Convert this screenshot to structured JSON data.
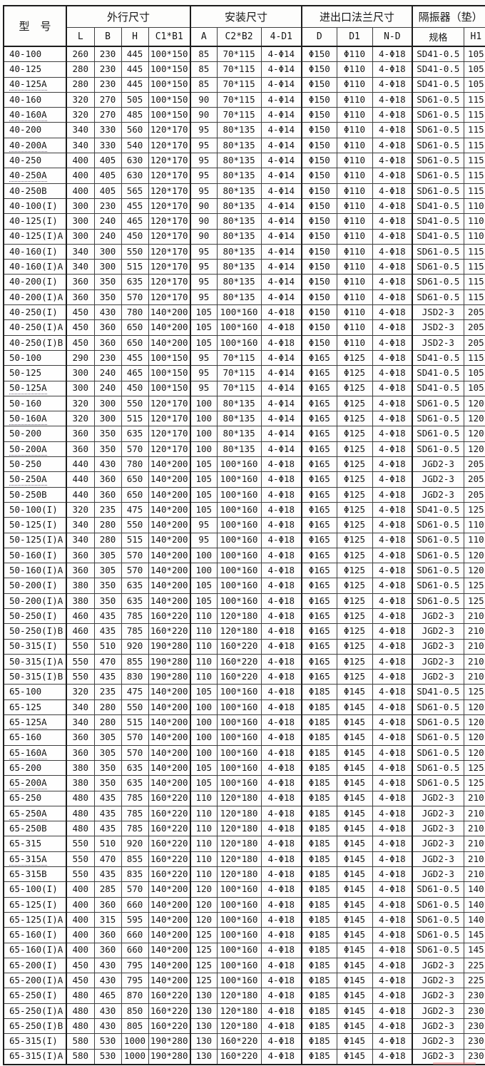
{
  "table": {
    "header": {
      "model": "型　号",
      "groups": [
        {
          "label": "外行尺寸",
          "cols": [
            "L",
            "B",
            "H",
            "C1*B1"
          ]
        },
        {
          "label": "安装尺寸",
          "cols": [
            "A",
            "C2*B2",
            "4-D1"
          ]
        },
        {
          "label": "进出口法兰尺寸",
          "cols": [
            "D",
            "D1",
            "N-D"
          ]
        },
        {
          "label": "隔振器（垫）",
          "cols": [
            "规格",
            "H1"
          ]
        }
      ]
    },
    "underlined_models": [
      "40-125A",
      "40-160A",
      "40-200A",
      "40-250A",
      "50-125A",
      "50-160A",
      "50-200A",
      "50-250A",
      "65-125A",
      "65-160A",
      "65-200A",
      "65-250A",
      "65-315A"
    ],
    "rows": [
      [
        "40-100",
        "260",
        "230",
        "445",
        "100*150",
        "85",
        "70*115",
        "4-Φ14",
        "Φ150",
        "Φ110",
        "4-Φ18",
        "SD41-0.5",
        "105"
      ],
      [
        "40-125",
        "280",
        "230",
        "445",
        "100*150",
        "85",
        "70*115",
        "4-Φ14",
        "Φ150",
        "Φ110",
        "4-Φ18",
        "SD41-0.5",
        "105"
      ],
      [
        "40-125A",
        "280",
        "230",
        "445",
        "100*150",
        "85",
        "70*115",
        "4-Φ14",
        "Φ150",
        "Φ110",
        "4-Φ18",
        "SD41-0.5",
        "105"
      ],
      [
        "40-160",
        "320",
        "270",
        "505",
        "100*150",
        "90",
        "70*115",
        "4-Φ14",
        "Φ150",
        "Φ110",
        "4-Φ18",
        "SD61-0.5",
        "115"
      ],
      [
        "40-160A",
        "320",
        "270",
        "485",
        "100*150",
        "90",
        "70*115",
        "4-Φ14",
        "Φ150",
        "Φ110",
        "4-Φ18",
        "SD61-0.5",
        "115"
      ],
      [
        "40-200",
        "340",
        "330",
        "560",
        "120*170",
        "95",
        "80*135",
        "4-Φ14",
        "Φ150",
        "Φ110",
        "4-Φ18",
        "SD61-0.5",
        "115"
      ],
      [
        "40-200A",
        "340",
        "330",
        "540",
        "120*170",
        "95",
        "80*135",
        "4-Φ14",
        "Φ150",
        "Φ110",
        "4-Φ18",
        "SD61-0.5",
        "115"
      ],
      [
        "40-250",
        "400",
        "405",
        "630",
        "120*170",
        "95",
        "80*135",
        "4-Φ14",
        "Φ150",
        "Φ110",
        "4-Φ18",
        "SD61-0.5",
        "115"
      ],
      [
        "40-250A",
        "400",
        "405",
        "630",
        "120*170",
        "95",
        "80*135",
        "4-Φ14",
        "Φ150",
        "Φ110",
        "4-Φ18",
        "SD61-0.5",
        "115"
      ],
      [
        "40-250B",
        "400",
        "405",
        "565",
        "120*170",
        "95",
        "80*135",
        "4-Φ14",
        "Φ150",
        "Φ110",
        "4-Φ18",
        "SD61-0.5",
        "115"
      ],
      [
        "40-100(I)",
        "300",
        "230",
        "455",
        "120*170",
        "90",
        "80*135",
        "4-Φ14",
        "Φ150",
        "Φ110",
        "4-Φ18",
        "SD41-0.5",
        "110"
      ],
      [
        "40-125(I)",
        "300",
        "240",
        "465",
        "120*170",
        "90",
        "80*135",
        "4-Φ14",
        "Φ150",
        "Φ110",
        "4-Φ18",
        "SD41-0.5",
        "110"
      ],
      [
        "40-125(I)A",
        "300",
        "240",
        "450",
        "120*170",
        "90",
        "80*135",
        "4-Φ14",
        "Φ150",
        "Φ110",
        "4-Φ18",
        "SD41-0.5",
        "110"
      ],
      [
        "40-160(I)",
        "340",
        "300",
        "550",
        "120*170",
        "95",
        "80*135",
        "4-Φ14",
        "Φ150",
        "Φ110",
        "4-Φ18",
        "SD61-0.5",
        "115"
      ],
      [
        "40-160(I)A",
        "340",
        "300",
        "515",
        "120*170",
        "95",
        "80*135",
        "4-Φ14",
        "Φ150",
        "Φ110",
        "4-Φ18",
        "SD61-0.5",
        "115"
      ],
      [
        "40-200(I)",
        "360",
        "350",
        "635",
        "120*170",
        "95",
        "80*135",
        "4-Φ14",
        "Φ150",
        "Φ110",
        "4-Φ18",
        "SD61-0.5",
        "115"
      ],
      [
        "40-200(I)A",
        "360",
        "350",
        "570",
        "120*170",
        "95",
        "80*135",
        "4-Φ14",
        "Φ150",
        "Φ110",
        "4-Φ18",
        "SD61-0.5",
        "115"
      ],
      [
        "40-250(I)",
        "450",
        "430",
        "780",
        "140*200",
        "105",
        "100*160",
        "4-Φ18",
        "Φ150",
        "Φ110",
        "4-Φ18",
        "JSD2-3",
        "205"
      ],
      [
        "40-250(I)A",
        "450",
        "360",
        "650",
        "140*200",
        "105",
        "100*160",
        "4-Φ18",
        "Φ150",
        "Φ110",
        "4-Φ18",
        "JSD2-3",
        "205"
      ],
      [
        "40-250(I)B",
        "450",
        "360",
        "650",
        "140*200",
        "105",
        "100*160",
        "4-Φ18",
        "Φ150",
        "Φ110",
        "4-Φ18",
        "JSD2-3",
        "205"
      ],
      [
        "50-100",
        "290",
        "230",
        "455",
        "100*150",
        "95",
        "70*115",
        "4-Φ14",
        "Φ165",
        "Φ125",
        "4-Φ18",
        "SD41-0.5",
        "115"
      ],
      [
        "50-125",
        "300",
        "240",
        "465",
        "100*150",
        "95",
        "70*115",
        "4-Φ14",
        "Φ165",
        "Φ125",
        "4-Φ18",
        "SD41-0.5",
        "105"
      ],
      [
        "50-125A",
        "300",
        "240",
        "450",
        "100*150",
        "95",
        "70*115",
        "4-Φ14",
        "Φ165",
        "Φ125",
        "4-Φ18",
        "SD41-0.5",
        "105"
      ],
      [
        "50-160",
        "320",
        "300",
        "550",
        "120*170",
        "100",
        "80*135",
        "4-Φ14",
        "Φ165",
        "Φ125",
        "4-Φ18",
        "SD61-0.5",
        "120"
      ],
      [
        "50-160A",
        "320",
        "300",
        "515",
        "120*170",
        "100",
        "80*135",
        "4-Φ14",
        "Φ165",
        "Φ125",
        "4-Φ18",
        "SD61-0.5",
        "120"
      ],
      [
        "50-200",
        "360",
        "350",
        "635",
        "120*170",
        "100",
        "80*135",
        "4-Φ14",
        "Φ165",
        "Φ125",
        "4-Φ18",
        "SD61-0.5",
        "120"
      ],
      [
        "50-200A",
        "360",
        "350",
        "570",
        "120*170",
        "100",
        "80*135",
        "4-Φ14",
        "Φ165",
        "Φ125",
        "4-Φ18",
        "SD61-0.5",
        "120"
      ],
      [
        "50-250",
        "440",
        "430",
        "780",
        "140*200",
        "105",
        "100*160",
        "4-Φ18",
        "Φ165",
        "Φ125",
        "4-Φ18",
        "JGD2-3",
        "205"
      ],
      [
        "50-250A",
        "440",
        "360",
        "650",
        "140*200",
        "105",
        "100*160",
        "4-Φ18",
        "Φ165",
        "Φ125",
        "4-Φ18",
        "JGD2-3",
        "205"
      ],
      [
        "50-250B",
        "440",
        "360",
        "650",
        "140*200",
        "105",
        "100*160",
        "4-Φ18",
        "Φ165",
        "Φ125",
        "4-Φ18",
        "JGD2-3",
        "205"
      ],
      [
        "50-100(I)",
        "320",
        "235",
        "475",
        "140*200",
        "105",
        "100*160",
        "4-Φ18",
        "Φ165",
        "Φ125",
        "4-Φ18",
        "SD41-0.5",
        "125"
      ],
      [
        "50-125(I)",
        "340",
        "280",
        "550",
        "140*200",
        "95",
        "100*160",
        "4-Φ18",
        "Φ165",
        "Φ125",
        "4-Φ18",
        "SD61-0.5",
        "110"
      ],
      [
        "50-125(I)A",
        "340",
        "280",
        "515",
        "140*200",
        "95",
        "100*160",
        "4-Φ18",
        "Φ165",
        "Φ125",
        "4-Φ18",
        "SD61-0.5",
        "110"
      ],
      [
        "50-160(I)",
        "360",
        "305",
        "570",
        "140*200",
        "100",
        "100*160",
        "4-Φ18",
        "Φ165",
        "Φ125",
        "4-Φ18",
        "SD61-0.5",
        "120"
      ],
      [
        "50-160(I)A",
        "360",
        "305",
        "570",
        "140*200",
        "100",
        "100*160",
        "4-Φ18",
        "Φ165",
        "Φ125",
        "4-Φ18",
        "SD61-0.5",
        "120"
      ],
      [
        "50-200(I)",
        "380",
        "350",
        "635",
        "140*200",
        "105",
        "100*160",
        "4-Φ18",
        "Φ165",
        "Φ125",
        "4-Φ18",
        "SD61-0.5",
        "125"
      ],
      [
        "50-200(I)A",
        "380",
        "350",
        "635",
        "140*200",
        "105",
        "100*160",
        "4-Φ18",
        "Φ165",
        "Φ125",
        "4-Φ18",
        "SD61-0.5",
        "125"
      ],
      [
        "50-250(I)",
        "460",
        "435",
        "785",
        "160*220",
        "110",
        "120*180",
        "4-Φ18",
        "Φ165",
        "Φ125",
        "4-Φ18",
        "JGD2-3",
        "210"
      ],
      [
        "50-250(I)B",
        "460",
        "435",
        "785",
        "160*220",
        "110",
        "120*180",
        "4-Φ18",
        "Φ165",
        "Φ125",
        "4-Φ18",
        "JGD2-3",
        "210"
      ],
      [
        "50-315(I)",
        "550",
        "510",
        "920",
        "190*280",
        "110",
        "160*220",
        "4-Φ18",
        "Φ165",
        "Φ125",
        "4-Φ18",
        "JGD2-3",
        "210"
      ],
      [
        "50-315(I)A",
        "550",
        "470",
        "855",
        "190*280",
        "110",
        "160*220",
        "4-Φ18",
        "Φ165",
        "Φ125",
        "4-Φ18",
        "JGD2-3",
        "210"
      ],
      [
        "50-315(I)B",
        "550",
        "435",
        "830",
        "190*280",
        "110",
        "160*220",
        "4-Φ18",
        "Φ165",
        "Φ125",
        "4-Φ18",
        "JGD2-3",
        "210"
      ],
      [
        "65-100",
        "320",
        "235",
        "475",
        "140*200",
        "105",
        "100*160",
        "4-Φ18",
        "Φ185",
        "Φ145",
        "4-Φ18",
        "SD41-0.5",
        "125"
      ],
      [
        "65-125",
        "340",
        "280",
        "550",
        "140*200",
        "100",
        "100*160",
        "4-Φ18",
        "Φ185",
        "Φ145",
        "4-Φ18",
        "SD61-0.5",
        "120"
      ],
      [
        "65-125A",
        "340",
        "280",
        "515",
        "140*200",
        "100",
        "100*160",
        "4-Φ18",
        "Φ185",
        "Φ145",
        "4-Φ18",
        "SD61-0.5",
        "120"
      ],
      [
        "65-160",
        "360",
        "305",
        "570",
        "140*200",
        "100",
        "100*160",
        "4-Φ18",
        "Φ185",
        "Φ145",
        "4-Φ18",
        "SD61-0.5",
        "120"
      ],
      [
        "65-160A",
        "360",
        "305",
        "570",
        "140*200",
        "100",
        "100*160",
        "4-Φ18",
        "Φ185",
        "Φ145",
        "4-Φ18",
        "SD61-0.5",
        "120"
      ],
      [
        "65-200",
        "380",
        "350",
        "635",
        "140*200",
        "105",
        "100*160",
        "4-Φ18",
        "Φ185",
        "Φ145",
        "4-Φ18",
        "SD61-0.5",
        "125"
      ],
      [
        "65-200A",
        "380",
        "350",
        "635",
        "140*200",
        "105",
        "100*160",
        "4-Φ18",
        "Φ185",
        "Φ145",
        "4-Φ18",
        "SD61-0.5",
        "125"
      ],
      [
        "65-250",
        "480",
        "435",
        "785",
        "160*220",
        "110",
        "120*180",
        "4-Φ18",
        "Φ185",
        "Φ145",
        "4-Φ18",
        "JGD2-3",
        "210"
      ],
      [
        "65-250A",
        "480",
        "435",
        "785",
        "160*220",
        "110",
        "120*180",
        "4-Φ18",
        "Φ185",
        "Φ145",
        "4-Φ18",
        "JGD2-3",
        "210"
      ],
      [
        "65-250B",
        "480",
        "435",
        "785",
        "160*220",
        "110",
        "120*180",
        "4-Φ18",
        "Φ185",
        "Φ145",
        "4-Φ18",
        "JGD2-3",
        "210"
      ],
      [
        "65-315",
        "550",
        "510",
        "920",
        "160*220",
        "110",
        "120*180",
        "4-Φ18",
        "Φ185",
        "Φ145",
        "4-Φ18",
        "JGD2-3",
        "210"
      ],
      [
        "65-315A",
        "550",
        "470",
        "855",
        "160*220",
        "110",
        "120*180",
        "4-Φ18",
        "Φ185",
        "Φ145",
        "4-Φ18",
        "JGD2-3",
        "210"
      ],
      [
        "65-315B",
        "550",
        "435",
        "835",
        "160*220",
        "110",
        "120*180",
        "4-Φ18",
        "Φ185",
        "Φ145",
        "4-Φ18",
        "JGD2-3",
        "210"
      ],
      [
        "65-100(I)",
        "400",
        "285",
        "570",
        "140*200",
        "120",
        "100*160",
        "4-Φ18",
        "Φ185",
        "Φ145",
        "4-Φ18",
        "SD61-0.5",
        "140"
      ],
      [
        "65-125(I)",
        "400",
        "360",
        "660",
        "140*200",
        "120",
        "100*160",
        "4-Φ18",
        "Φ185",
        "Φ145",
        "4-Φ18",
        "SD61-0.5",
        "140"
      ],
      [
        "65-125(I)A",
        "400",
        "315",
        "595",
        "140*200",
        "120",
        "100*160",
        "4-Φ18",
        "Φ185",
        "Φ145",
        "4-Φ18",
        "SD61-0.5",
        "140"
      ],
      [
        "65-160(I)",
        "400",
        "360",
        "660",
        "140*200",
        "125",
        "100*160",
        "4-Φ18",
        "Φ185",
        "Φ145",
        "4-Φ18",
        "SD61-0.5",
        "145"
      ],
      [
        "65-160(I)A",
        "400",
        "360",
        "660",
        "140*200",
        "125",
        "100*160",
        "4-Φ18",
        "Φ185",
        "Φ145",
        "4-Φ18",
        "SD61-0.5",
        "145"
      ],
      [
        "65-200(I)",
        "450",
        "430",
        "795",
        "140*200",
        "125",
        "100*160",
        "4-Φ18",
        "Φ185",
        "Φ145",
        "4-Φ18",
        "JGD2-3",
        "225"
      ],
      [
        "65-200(I)A",
        "450",
        "430",
        "795",
        "140*200",
        "125",
        "100*160",
        "4-Φ18",
        "Φ185",
        "Φ145",
        "4-Φ18",
        "JGD2-3",
        "225"
      ],
      [
        "65-250(I)",
        "480",
        "465",
        "870",
        "160*220",
        "130",
        "120*180",
        "4-Φ18",
        "Φ185",
        "Φ145",
        "4-Φ18",
        "JGD2-3",
        "230"
      ],
      [
        "65-250(I)A",
        "480",
        "430",
        "850",
        "160*220",
        "130",
        "120*180",
        "4-Φ18",
        "Φ185",
        "Φ145",
        "4-Φ18",
        "JGD2-3",
        "230"
      ],
      [
        "65-250(I)B",
        "480",
        "430",
        "805",
        "160*220",
        "130",
        "120*180",
        "4-Φ18",
        "Φ185",
        "Φ145",
        "4-Φ18",
        "JGD2-3",
        "230"
      ],
      [
        "65-315(I)",
        "580",
        "530",
        "1000",
        "190*280",
        "130",
        "160*220",
        "4-Φ18",
        "Φ185",
        "Φ145",
        "4-Φ18",
        "JGD2-3",
        "230"
      ],
      [
        "65-315(I)A",
        "580",
        "530",
        "1000",
        "190*280",
        "130",
        "160*220",
        "4-Φ18",
        "Φ185",
        "Φ145",
        "4-Φ18",
        "JGD2-3",
        "230"
      ]
    ]
  }
}
